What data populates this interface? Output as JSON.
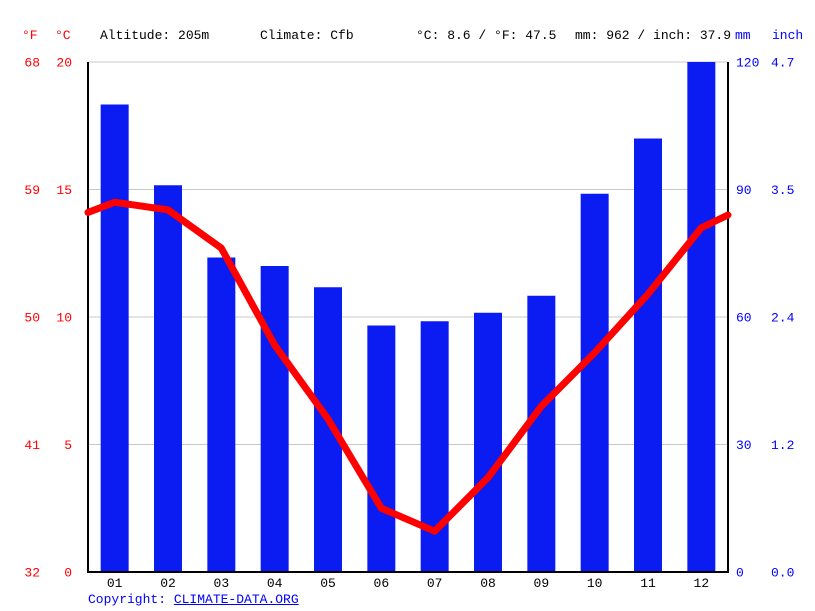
{
  "header": {
    "f_label": "°F",
    "c_label": "°C",
    "altitude": "Altitude: 205m",
    "climate": "Climate: Cfb",
    "temperature_summary": "°C: 8.6 / °F: 47.5",
    "precipitation_summary": "mm: 962 / inch: 37.9",
    "mm_label": "mm",
    "inch_label": "inch"
  },
  "footer": {
    "copyright_prefix": "Copyright: ",
    "copyright_link": "CLIMATE-DATA.ORG"
  },
  "chart_data": {
    "type": "bar",
    "subtype": "climate-graph (precipitation bars + temperature line)",
    "categories": [
      "01",
      "02",
      "03",
      "04",
      "05",
      "06",
      "07",
      "08",
      "09",
      "10",
      "11",
      "12"
    ],
    "series": [
      {
        "name": "Precipitation (mm)",
        "type": "bar",
        "values": [
          110,
          91,
          74,
          72,
          67,
          58,
          59,
          61,
          65,
          89,
          102,
          120
        ],
        "color": "#0b1cf2"
      },
      {
        "name": "Temperature (°C)",
        "type": "line",
        "values": [
          14.5,
          14.2,
          12.7,
          8.9,
          6.0,
          2.5,
          1.6,
          3.7,
          6.5,
          8.6,
          10.9,
          13.5
        ],
        "edge_start": 14.1,
        "edge_end": 14.0,
        "color": "#ff0000"
      }
    ],
    "axes": {
      "left_outer": {
        "label": "°F",
        "ticks": [
          "68",
          "59",
          "50",
          "41",
          "32"
        ],
        "color": "#ff0000"
      },
      "left_inner": {
        "label": "°C",
        "ticks": [
          "20",
          "15",
          "10",
          "5",
          "0"
        ],
        "tick_values": [
          20,
          15,
          10,
          5,
          0
        ],
        "max": 20,
        "min": 0,
        "color": "#ff0000"
      },
      "right_inner": {
        "label": "mm",
        "ticks": [
          "120",
          "90",
          "60",
          "30",
          "0"
        ],
        "tick_values": [
          120,
          90,
          60,
          30,
          0
        ],
        "max": 120,
        "min": 0,
        "color": "#0000ff"
      },
      "right_outer": {
        "label": "inch",
        "ticks": [
          "4.7",
          "3.5",
          "2.4",
          "1.2",
          "0.0"
        ],
        "color": "#0000ff"
      }
    },
    "grid": true,
    "grid_color": "#c8c8c8",
    "axis_color": "#000000",
    "month_label_color": "#000000",
    "legend": "none"
  }
}
